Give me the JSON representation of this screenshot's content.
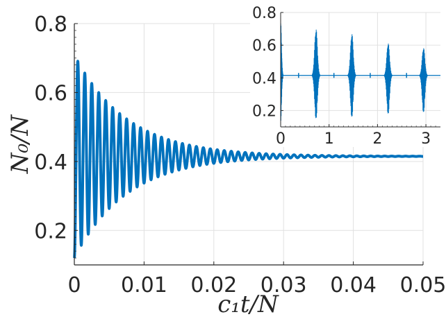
{
  "chart_data": [
    {
      "type": "line",
      "panel": "main",
      "xlabel": "c₁t/N",
      "ylabel": "N₀/N",
      "xlim": [
        0,
        0.05
      ],
      "ylim": [
        0.1,
        0.8
      ],
      "xticks": [
        0,
        0.01,
        0.02,
        0.03,
        0.04,
        0.05
      ],
      "xtick_labels": [
        "0",
        "0.01",
        "0.02",
        "0.03",
        "0.04",
        "0.05"
      ],
      "yticks": [
        0.2,
        0.4,
        0.6,
        0.8
      ],
      "ytick_labels": [
        "0.2",
        "0.4",
        "0.6",
        "0.8"
      ],
      "grid": true,
      "series": [
        {
          "color": "#0072BD",
          "description_of_shape": "damped oscillation starting near 0.12 with first maximum ~0.75, oscillation period ~0.001, amplitude decaying to zero by ~0.024, settling at 0.415",
          "points": [
            [
              0.0,
              0.12
            ],
            [
              0.0005,
              0.75
            ],
            [
              0.001,
              0.13
            ],
            [
              0.002,
              0.74
            ],
            [
              0.003,
              0.14
            ],
            [
              0.005,
              0.7
            ],
            [
              0.008,
              0.62
            ],
            [
              0.01,
              0.58
            ],
            [
              0.012,
              0.53
            ],
            [
              0.015,
              0.48
            ],
            [
              0.018,
              0.44
            ],
            [
              0.02,
              0.425
            ],
            [
              0.022,
              0.42
            ],
            [
              0.025,
              0.416
            ],
            [
              0.03,
              0.415
            ],
            [
              0.04,
              0.415
            ],
            [
              0.05,
              0.415
            ]
          ],
          "equilibrium": 0.415,
          "initial": 0.12,
          "first_peak": 0.75,
          "period": 0.001,
          "decay_constant": 0.0075
        }
      ]
    },
    {
      "type": "line",
      "panel": "inset",
      "xlim": [
        0,
        3.3
      ],
      "ylim": [
        0.1,
        0.8
      ],
      "xticks": [
        0,
        1,
        2,
        3
      ],
      "xtick_labels": [
        "0",
        "1",
        "2",
        "3"
      ],
      "yticks": [
        0.2,
        0.4,
        0.6,
        0.8
      ],
      "ytick_labels": [
        "0.2",
        "0.4",
        "0.6",
        "0.8"
      ],
      "grid": true,
      "series": [
        {
          "color": "#0072BD",
          "baseline": 0.415,
          "bursts": [
            {
              "x": 0.0,
              "max": 0.75,
              "min": 0.12
            },
            {
              "x": 0.73,
              "max": 0.71,
              "min": 0.14
            },
            {
              "x": 1.47,
              "max": 0.68,
              "min": 0.15
            },
            {
              "x": 2.22,
              "max": 0.62,
              "min": 0.17
            },
            {
              "x": 2.95,
              "max": 0.59,
              "min": 0.18
            }
          ],
          "small_blips": [
            0.37,
            1.1,
            1.85,
            2.6
          ]
        }
      ]
    }
  ]
}
